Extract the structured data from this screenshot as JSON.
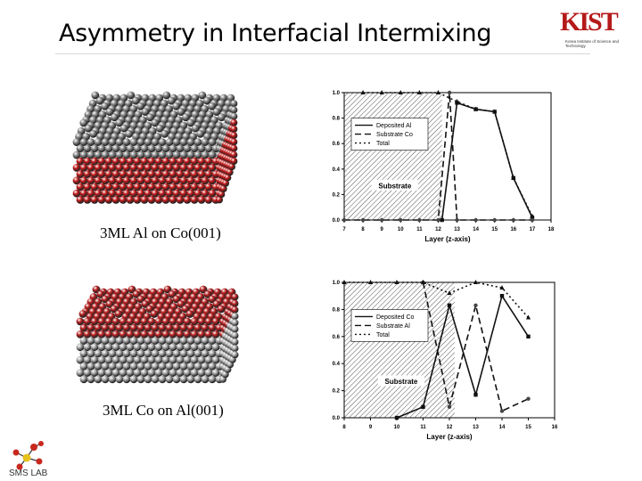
{
  "slide": {
    "title": "Asymmetry in Interfacial Intermixing"
  },
  "logo": {
    "mark": "KIST",
    "subtitle": "Korea Institute of Science and Technology"
  },
  "lab": {
    "name": "SMS LAB"
  },
  "panels": [
    {
      "caption": "3ML Al on Co(001)",
      "top_color": "#8a8a8a",
      "bottom_color": "#c21a1a"
    },
    {
      "caption": "3ML Co on Al(001)",
      "top_color": "#b82020",
      "bottom_color": "#a9a9a9"
    }
  ],
  "chart_data": [
    {
      "type": "line",
      "xlabel": "Layer (z-axis)",
      "ylabel": "",
      "xlim": [
        7,
        18
      ],
      "ylim": [
        0,
        1.0
      ],
      "x_ticks": [
        "7",
        "8",
        "9",
        "10",
        "11",
        "12",
        "13",
        "14",
        "15",
        "16",
        "17",
        "18"
      ],
      "y_ticks": [
        "0.0",
        "0.2",
        "0.4",
        "0.6",
        "0.8",
        "1.0"
      ],
      "substrate_label": "Substrate",
      "substrate_range": [
        7,
        12.2
      ],
      "legend_position": "left",
      "series": [
        {
          "name": "Deposited Al",
          "style": "solid",
          "marker": "square",
          "x": [
            12.2,
            13,
            14,
            15,
            16,
            17
          ],
          "y": [
            0.0,
            0.92,
            0.87,
            0.85,
            0.33,
            0.02
          ]
        },
        {
          "name": "Substrate Co",
          "style": "dashed",
          "marker": "circle",
          "x": [
            7,
            8,
            9,
            10,
            11,
            12,
            12.6,
            13,
            14,
            15,
            16,
            17
          ],
          "y": [
            0.0,
            0.0,
            0.0,
            0.0,
            0.0,
            0.0,
            1.0,
            0.0,
            0.0,
            0.0,
            0.0,
            0.0
          ]
        },
        {
          "name": "Total",
          "style": "dotted",
          "marker": "triangle",
          "x": [
            8,
            9,
            10,
            11,
            12,
            13,
            14,
            15,
            16,
            17
          ],
          "y": [
            1.0,
            1.0,
            1.0,
            1.0,
            1.0,
            0.93,
            0.87,
            0.85,
            0.33,
            0.03
          ]
        }
      ]
    },
    {
      "type": "line",
      "xlabel": "Layer (z-axis)",
      "ylabel": "",
      "xlim": [
        8,
        16
      ],
      "ylim": [
        0,
        1.0
      ],
      "x_ticks": [
        "8",
        "9",
        "10",
        "11",
        "12",
        "13",
        "14",
        "15",
        "16"
      ],
      "y_ticks": [
        "0.0",
        "0.2",
        "0.4",
        "0.6",
        "0.8",
        "1.0"
      ],
      "substrate_label": "Substrate",
      "substrate_range": [
        8,
        12.2
      ],
      "legend_position": "left",
      "series": [
        {
          "name": "Deposited Co",
          "style": "solid",
          "marker": "square",
          "x": [
            10,
            11,
            12,
            13,
            14,
            15
          ],
          "y": [
            0.0,
            0.08,
            0.83,
            0.17,
            0.9,
            0.6
          ]
        },
        {
          "name": "Substrate Al",
          "style": "dashed",
          "marker": "circle",
          "x": [
            11,
            12,
            13,
            14,
            15
          ],
          "y": [
            1.0,
            0.08,
            0.83,
            0.05,
            0.14
          ]
        },
        {
          "name": "Total",
          "style": "dotted",
          "marker": "triangle",
          "x": [
            8,
            9,
            10,
            11,
            12,
            13,
            14,
            15
          ],
          "y": [
            1.0,
            1.0,
            1.0,
            1.0,
            0.92,
            1.0,
            0.96,
            0.74
          ]
        }
      ]
    }
  ]
}
